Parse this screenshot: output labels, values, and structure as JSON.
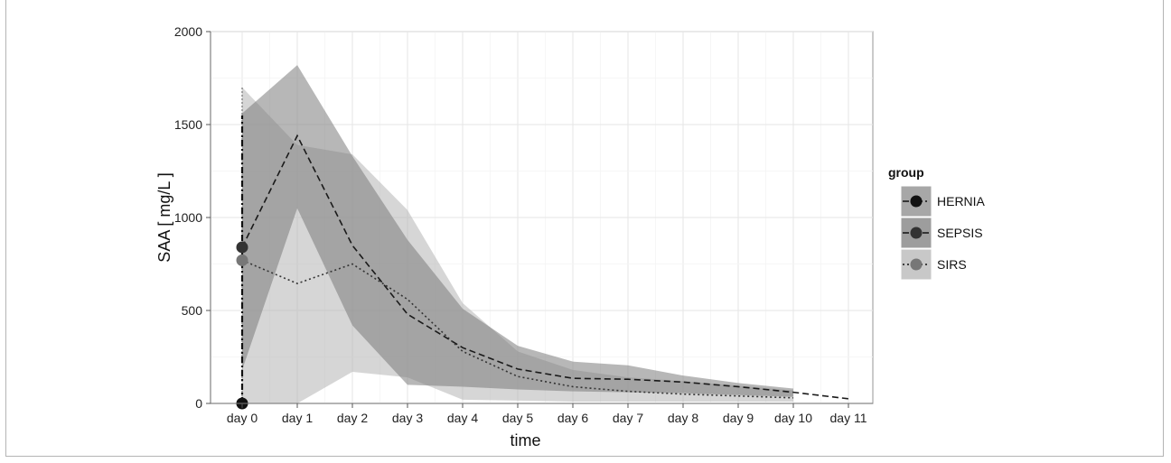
{
  "chart_data": {
    "type": "line",
    "title": "",
    "xlabel": "time",
    "ylabel": "SAA [ mg/L ]",
    "categories": [
      "day 0",
      "day 1",
      "day 2",
      "day 3",
      "day 4",
      "day 5",
      "day 6",
      "day 7",
      "day 8",
      "day 9",
      "day 10",
      "day 11"
    ],
    "ylim": [
      0,
      2000
    ],
    "yticks": [
      0,
      500,
      1000,
      1500,
      2000
    ],
    "grid": true,
    "legend": {
      "title": "group",
      "placement": "right"
    },
    "series": [
      {
        "name": "HERNIA",
        "line_style": "dashdot",
        "color": "#111111",
        "band_color": "#8a8a8a",
        "x": [
          "day 0"
        ],
        "values": [
          0
        ],
        "band": {
          "low": [
            0
          ],
          "high": [
            1700
          ]
        }
      },
      {
        "name": "SEPSIS",
        "line_style": "dashed",
        "color": "#333333",
        "band_color": "#7c7c7c",
        "x": [
          "day 0",
          "day 1",
          "day 2",
          "day 3",
          "day 4",
          "day 5",
          "day 6",
          "day 7",
          "day 8",
          "day 9",
          "day 10",
          "day 11"
        ],
        "values": [
          840,
          1440,
          850,
          480,
          300,
          185,
          135,
          130,
          115,
          90,
          60,
          25
        ],
        "band": {
          "low": [
            180,
            1050,
            420,
            100,
            90,
            75,
            65,
            60,
            55,
            45,
            35
          ],
          "high": [
            1560,
            1820,
            1330,
            880,
            510,
            310,
            225,
            205,
            150,
            110,
            80
          ]
        }
      },
      {
        "name": "SIRS",
        "line_style": "dotted",
        "color": "#777777",
        "band_color": "#b5b5b5",
        "x": [
          "day 0",
          "day 1",
          "day 2",
          "day 3",
          "day 4",
          "day 5",
          "day 6",
          "day 7",
          "day 8",
          "day 9",
          "day 10"
        ],
        "values": [
          770,
          645,
          750,
          560,
          280,
          145,
          90,
          65,
          50,
          40,
          30
        ],
        "band": {
          "low": [
            0,
            0,
            170,
            140,
            20,
            15,
            10,
            10,
            10,
            10,
            10
          ],
          "high": [
            1700,
            1390,
            1340,
            1040,
            540,
            280,
            180,
            140,
            120,
            95,
            70
          ]
        }
      }
    ]
  }
}
